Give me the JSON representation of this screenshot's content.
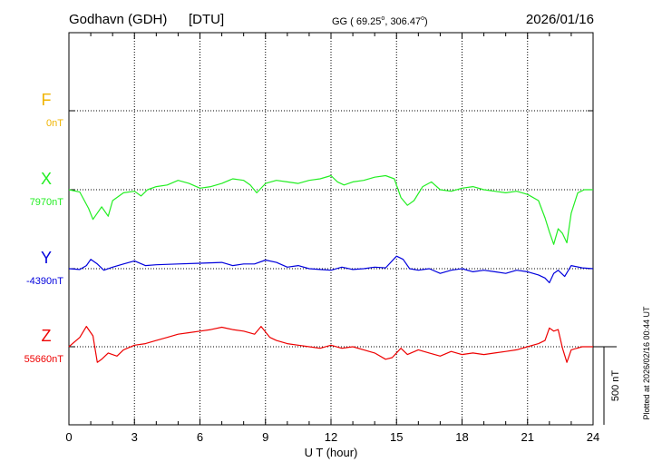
{
  "header": {
    "station": "Godhavn (GDH)",
    "institute": "[DTU]",
    "coords_prefix": "GG ( 69.25",
    "coords_mid": ", 306.47",
    "coords_suffix": ")",
    "degree_mark": "o",
    "date": "2026/01/16"
  },
  "footer": {
    "plotted": "Plotted at 2026/02/16 00:44 UT",
    "scale_label": "500 nT"
  },
  "colors": {
    "F": "#f0b400",
    "X": "#22ee22",
    "Y": "#0000dd",
    "Z": "#ee0000",
    "axis": "#000000"
  },
  "chart_data": {
    "type": "line",
    "xlabel": "U T (hour)",
    "xlim": [
      0,
      24
    ],
    "xticks": [
      0,
      3,
      6,
      9,
      12,
      15,
      18,
      21,
      24
    ],
    "x_tick_labels": [
      "0",
      "3",
      "6",
      "9",
      "12",
      "15",
      "18",
      "21",
      "24"
    ],
    "grid": true,
    "series": [
      {
        "name": "F",
        "baseline_label": "0nT",
        "baseline_nT": 0,
        "x": [],
        "y": []
      },
      {
        "name": "X",
        "baseline_label": "7970nT",
        "baseline_nT": 7970,
        "x": [
          0,
          0.5,
          0.9,
          1.1,
          1.3,
          1.5,
          1.8,
          2.0,
          2.5,
          3.0,
          3.3,
          3.6,
          4.0,
          4.5,
          5.0,
          5.5,
          6.0,
          6.5,
          7.0,
          7.5,
          8.0,
          8.3,
          8.6,
          9.0,
          9.5,
          10.0,
          10.5,
          11.0,
          11.5,
          12.0,
          12.3,
          12.6,
          13.0,
          13.5,
          14.0,
          14.5,
          14.9,
          15.2,
          15.5,
          15.8,
          16.2,
          16.6,
          17.0,
          17.5,
          18.0,
          18.5,
          19.0,
          19.5,
          20.0,
          20.5,
          21.0,
          21.5,
          21.8,
          22.0,
          22.2,
          22.4,
          22.6,
          22.8,
          23.0,
          23.3,
          23.6,
          24.0
        ],
        "y": [
          7970,
          7955,
          7850,
          7780,
          7820,
          7860,
          7800,
          7900,
          7950,
          7960,
          7930,
          7970,
          7990,
          8000,
          8030,
          8010,
          7980,
          7990,
          8010,
          8040,
          8030,
          8000,
          7950,
          8010,
          8030,
          8020,
          8010,
          8030,
          8040,
          8060,
          8020,
          8000,
          8020,
          8030,
          8050,
          8060,
          8040,
          7920,
          7870,
          7900,
          7990,
          8020,
          7970,
          7960,
          7980,
          7990,
          7970,
          7960,
          7950,
          7960,
          7940,
          7900,
          7790,
          7700,
          7620,
          7720,
          7690,
          7630,
          7820,
          7950,
          7970,
          7970
        ]
      },
      {
        "name": "Y",
        "baseline_label": "-4390nT",
        "baseline_nT": -4390,
        "x": [
          0,
          0.5,
          0.8,
          1.0,
          1.3,
          1.6,
          2.0,
          2.5,
          3.0,
          3.5,
          4.0,
          5.0,
          6.0,
          7.0,
          7.5,
          8.0,
          8.5,
          9.0,
          9.5,
          10.0,
          10.5,
          11.0,
          11.5,
          12.0,
          12.5,
          13.0,
          13.5,
          14.0,
          14.5,
          15.0,
          15.3,
          15.6,
          16.0,
          16.5,
          17.0,
          17.5,
          18.0,
          18.5,
          19.0,
          19.5,
          20.0,
          20.5,
          21.0,
          21.5,
          21.8,
          22.0,
          22.2,
          22.4,
          22.7,
          23.0,
          23.5,
          24.0
        ],
        "y": [
          -4390,
          -4395,
          -4370,
          -4330,
          -4360,
          -4400,
          -4380,
          -4360,
          -4340,
          -4370,
          -4365,
          -4360,
          -4355,
          -4350,
          -4370,
          -4360,
          -4360,
          -4335,
          -4350,
          -4380,
          -4370,
          -4390,
          -4395,
          -4400,
          -4380,
          -4395,
          -4390,
          -4380,
          -4385,
          -4310,
          -4330,
          -4390,
          -4400,
          -4390,
          -4420,
          -4400,
          -4390,
          -4410,
          -4400,
          -4410,
          -4420,
          -4400,
          -4410,
          -4430,
          -4450,
          -4480,
          -4420,
          -4400,
          -4440,
          -4370,
          -4385,
          -4390
        ]
      },
      {
        "name": "Z",
        "baseline_label": "55660nT",
        "baseline_nT": 55660,
        "x": [
          0,
          0.5,
          0.8,
          1.1,
          1.3,
          1.5,
          1.8,
          2.2,
          2.5,
          3.0,
          3.5,
          4.0,
          4.5,
          5.0,
          5.5,
          6.0,
          6.5,
          7.0,
          7.5,
          8.0,
          8.5,
          8.8,
          9.2,
          9.5,
          10.0,
          10.5,
          11.0,
          11.5,
          12.0,
          12.5,
          13.0,
          13.5,
          14.0,
          14.5,
          14.8,
          15.2,
          15.5,
          16.0,
          16.5,
          17.0,
          17.5,
          18.0,
          18.5,
          19.0,
          19.5,
          20.0,
          20.5,
          21.0,
          21.5,
          21.8,
          22.0,
          22.2,
          22.4,
          22.6,
          22.8,
          23.0,
          23.5,
          24.0
        ],
        "y": [
          55660,
          55720,
          55790,
          55730,
          55560,
          55580,
          55620,
          55600,
          55640,
          55670,
          55680,
          55700,
          55720,
          55740,
          55750,
          55760,
          55770,
          55785,
          55770,
          55760,
          55740,
          55790,
          55720,
          55700,
          55680,
          55670,
          55660,
          55650,
          55670,
          55650,
          55660,
          55640,
          55620,
          55580,
          55590,
          55650,
          55610,
          55640,
          55620,
          55600,
          55630,
          55610,
          55620,
          55610,
          55620,
          55630,
          55640,
          55660,
          55680,
          55700,
          55780,
          55760,
          55770,
          55650,
          55560,
          55640,
          55660,
          55660
        ]
      }
    ]
  }
}
